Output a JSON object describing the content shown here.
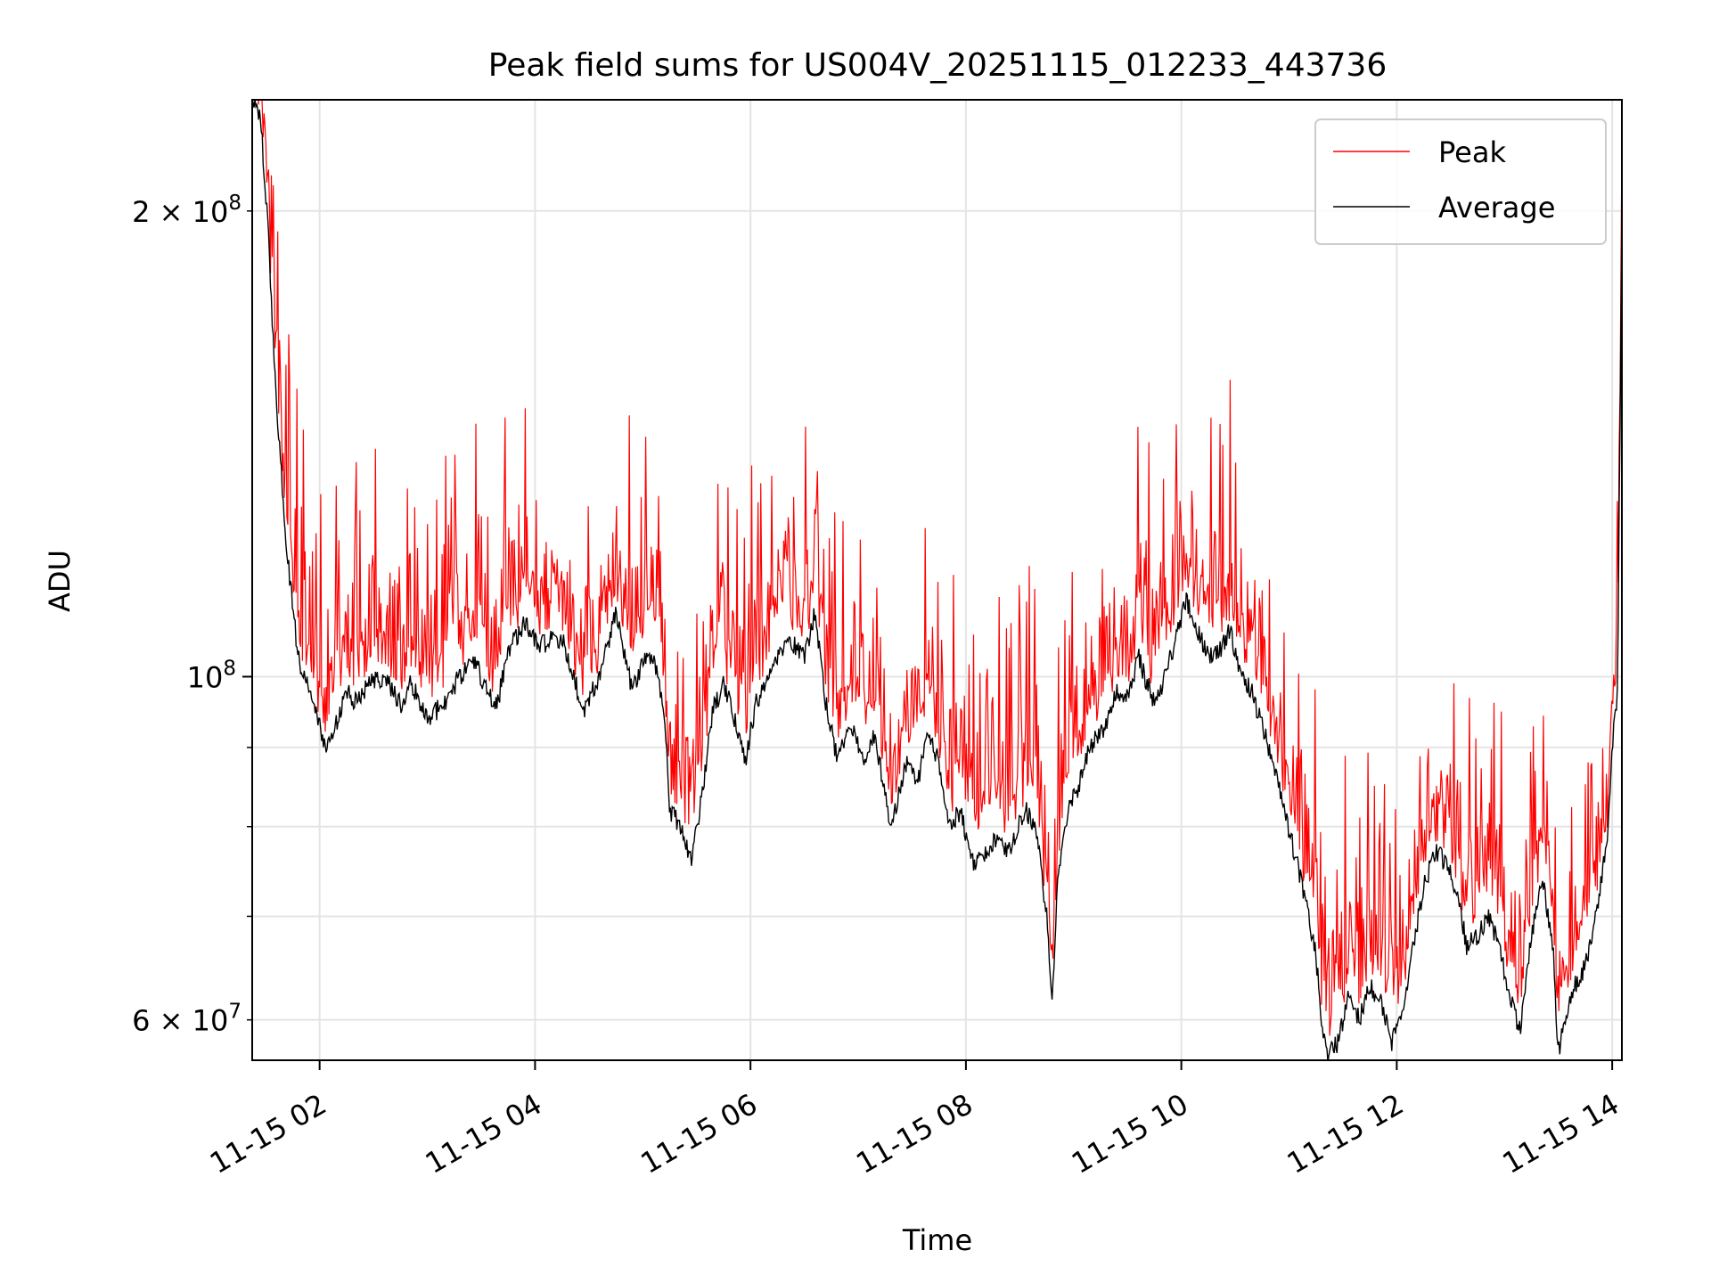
{
  "chart_data": {
    "type": "line",
    "title": "Peak field sums for US004V_20251115_012233_443736",
    "xlabel": "Time",
    "ylabel": "ADU",
    "yscale": "log",
    "ylim": [
      56500000,
      236000000
    ],
    "xlim_hours": [
      1.374,
      14.09
    ],
    "grid": true,
    "legend_position": "upper right",
    "x_ticks": [
      {
        "hour": 2,
        "label": "11-15 02"
      },
      {
        "hour": 4,
        "label": "11-15 04"
      },
      {
        "hour": 6,
        "label": "11-15 06"
      },
      {
        "hour": 8,
        "label": "11-15 08"
      },
      {
        "hour": 10,
        "label": "11-15 10"
      },
      {
        "hour": 12,
        "label": "11-15 12"
      },
      {
        "hour": 14,
        "label": "11-15 14"
      }
    ],
    "y_major_ticks": [
      {
        "value": 100000000,
        "base": "10",
        "exp": "8",
        "mantissa": ""
      }
    ],
    "y_minor_ticks": [
      {
        "value": 60000000,
        "base": "10",
        "exp": "7",
        "mantissa": "6"
      },
      {
        "value": 70000000
      },
      {
        "value": 80000000
      },
      {
        "value": 90000000
      },
      {
        "value": 200000000,
        "base": "10",
        "exp": "8",
        "mantissa": "2"
      }
    ],
    "series": [
      {
        "name": "Peak",
        "color": "#ff0000"
      },
      {
        "name": "Average",
        "color": "#000000"
      }
    ],
    "average_anchors": [
      [
        1.374,
        236000000
      ],
      [
        1.45,
        230000000
      ],
      [
        1.52,
        195000000
      ],
      [
        1.6,
        150000000
      ],
      [
        1.7,
        120000000
      ],
      [
        1.8,
        103000000
      ],
      [
        1.95,
        96000000
      ],
      [
        2.05,
        90000000
      ],
      [
        2.15,
        93000000
      ],
      [
        2.25,
        98000000
      ],
      [
        2.35,
        96000000
      ],
      [
        2.45,
        99000000
      ],
      [
        2.6,
        100000000
      ],
      [
        2.75,
        96000000
      ],
      [
        2.85,
        99000000
      ],
      [
        3.0,
        94000000
      ],
      [
        3.15,
        96000000
      ],
      [
        3.3,
        100000000
      ],
      [
        3.45,
        102000000
      ],
      [
        3.55,
        98000000
      ],
      [
        3.65,
        96000000
      ],
      [
        3.75,
        104000000
      ],
      [
        3.9,
        108000000
      ],
      [
        4.05,
        105000000
      ],
      [
        4.25,
        106000000
      ],
      [
        4.45,
        95000000
      ],
      [
        4.6,
        100000000
      ],
      [
        4.75,
        110000000
      ],
      [
        4.9,
        98000000
      ],
      [
        5.0,
        102000000
      ],
      [
        5.1,
        103000000
      ],
      [
        5.2,
        95000000
      ],
      [
        5.25,
        82000000
      ],
      [
        5.35,
        80000000
      ],
      [
        5.45,
        76000000
      ],
      [
        5.55,
        84000000
      ],
      [
        5.65,
        95000000
      ],
      [
        5.75,
        99000000
      ],
      [
        5.85,
        94000000
      ],
      [
        5.95,
        88000000
      ],
      [
        6.05,
        96000000
      ],
      [
        6.2,
        102000000
      ],
      [
        6.35,
        106000000
      ],
      [
        6.5,
        103000000
      ],
      [
        6.6,
        110000000
      ],
      [
        6.7,
        96000000
      ],
      [
        6.8,
        89000000
      ],
      [
        6.95,
        93000000
      ],
      [
        7.05,
        88000000
      ],
      [
        7.15,
        92000000
      ],
      [
        7.3,
        80000000
      ],
      [
        7.45,
        88000000
      ],
      [
        7.55,
        85000000
      ],
      [
        7.65,
        92000000
      ],
      [
        7.75,
        88000000
      ],
      [
        7.85,
        80000000
      ],
      [
        7.95,
        82000000
      ],
      [
        8.05,
        76000000
      ],
      [
        8.15,
        76000000
      ],
      [
        8.3,
        79000000
      ],
      [
        8.4,
        77000000
      ],
      [
        8.55,
        82000000
      ],
      [
        8.65,
        80000000
      ],
      [
        8.75,
        70000000
      ],
      [
        8.8,
        61000000
      ],
      [
        8.85,
        74000000
      ],
      [
        8.95,
        82000000
      ],
      [
        9.05,
        85000000
      ],
      [
        9.15,
        90000000
      ],
      [
        9.3,
        93000000
      ],
      [
        9.4,
        98000000
      ],
      [
        9.5,
        97000000
      ],
      [
        9.6,
        103000000
      ],
      [
        9.75,
        96000000
      ],
      [
        9.85,
        100000000
      ],
      [
        9.95,
        106000000
      ],
      [
        10.05,
        112000000
      ],
      [
        10.15,
        107000000
      ],
      [
        10.25,
        103000000
      ],
      [
        10.35,
        104000000
      ],
      [
        10.45,
        107000000
      ],
      [
        10.55,
        101000000
      ],
      [
        10.65,
        98000000
      ],
      [
        10.75,
        93000000
      ],
      [
        10.85,
        88000000
      ],
      [
        10.95,
        82000000
      ],
      [
        11.05,
        77000000
      ],
      [
        11.15,
        72000000
      ],
      [
        11.25,
        66000000
      ],
      [
        11.3,
        60000000
      ],
      [
        11.35,
        57000000
      ],
      [
        11.45,
        58000000
      ],
      [
        11.55,
        62000000
      ],
      [
        11.65,
        60000000
      ],
      [
        11.75,
        63000000
      ],
      [
        11.85,
        62000000
      ],
      [
        11.95,
        58000000
      ],
      [
        12.05,
        60000000
      ],
      [
        12.15,
        67000000
      ],
      [
        12.25,
        73000000
      ],
      [
        12.35,
        77000000
      ],
      [
        12.45,
        76000000
      ],
      [
        12.55,
        73000000
      ],
      [
        12.65,
        67000000
      ],
      [
        12.75,
        68000000
      ],
      [
        12.85,
        70000000
      ],
      [
        12.95,
        67000000
      ],
      [
        13.05,
        62000000
      ],
      [
        13.15,
        59000000
      ],
      [
        13.25,
        68000000
      ],
      [
        13.35,
        74000000
      ],
      [
        13.45,
        67000000
      ],
      [
        13.5,
        57000000
      ],
      [
        13.55,
        60000000
      ],
      [
        13.65,
        63000000
      ],
      [
        13.75,
        65000000
      ],
      [
        13.85,
        70000000
      ],
      [
        13.95,
        78000000
      ],
      [
        14.0,
        90000000
      ],
      [
        14.05,
        98000000
      ],
      [
        14.09,
        200000000
      ]
    ]
  }
}
